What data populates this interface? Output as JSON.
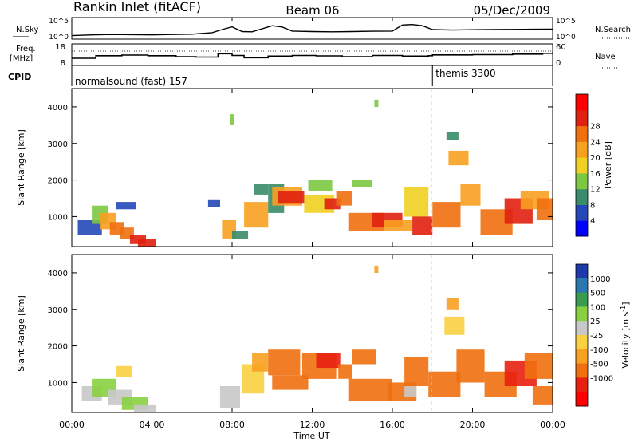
{
  "header": {
    "site": "Rankin Inlet (fitACF)",
    "beam": "Beam 06",
    "date": "05/Dec/2009"
  },
  "strips": {
    "nsky": {
      "label": "N.Sky",
      "tick_top": "10^5",
      "tick_bottom": "10^0",
      "right_label": "N.Search",
      "right_tick_top": "10^5",
      "right_tick_bottom": "10^0"
    },
    "freq": {
      "label_line1": "Freq.",
      "label_line2": "[MHz]",
      "tick_top": "18",
      "tick_bottom": "8",
      "right_label": "Nave",
      "right_tick_top": "60",
      "right_tick_bottom": "0"
    },
    "cpid": {
      "label": "CPID",
      "programs": [
        {
          "name": "normalsound (fast) 157",
          "start_hour": 0
        },
        {
          "name": "themis 3300",
          "start_hour": 18.0
        }
      ]
    }
  },
  "axes": {
    "xlabel": "Time UT",
    "xticks": [
      "00:00",
      "04:00",
      "08:00",
      "12:00",
      "16:00",
      "20:00",
      "00:00"
    ],
    "ylabel": "Slant Range [km]",
    "yticks": [
      "1000",
      "2000",
      "3000",
      "4000"
    ]
  },
  "colorbars": {
    "power": {
      "label": "Power [dB]",
      "ticks": [
        "4",
        "8",
        "12",
        "16",
        "20",
        "24",
        "28"
      ],
      "colors": [
        "#0000ff",
        "#2448b8",
        "#3a8c6a",
        "#7cc842",
        "#f0d020",
        "#f8a020",
        "#f07010",
        "#e02010",
        "#ff0000"
      ]
    },
    "velocity": {
      "label": "Velocity [m s^-1]",
      "ticks": [
        "1000",
        "500",
        "100",
        "25",
        "-25",
        "-100",
        "-500",
        "-1000"
      ],
      "colors": [
        "#1c3aa8",
        "#2a78b0",
        "#3a9a50",
        "#88d040",
        "#c8c8c8",
        "#f8d040",
        "#f8a020",
        "#f07010",
        "#e82010",
        "#ff0000"
      ]
    }
  },
  "chart_data": [
    {
      "type": "line",
      "title": "N.Sky / N.Search",
      "x_unit": "hours UT",
      "y_scale": "log",
      "ylim": [
        1,
        100000
      ],
      "x": [
        0,
        1,
        2,
        3,
        4,
        5,
        6,
        7,
        7.5,
        8,
        8.5,
        9,
        10,
        10.5,
        11,
        12,
        13,
        14,
        15,
        16,
        16.5,
        17,
        17.5,
        18,
        19,
        20,
        21,
        22,
        23,
        24
      ],
      "series": [
        {
          "values": [
            5,
            8,
            10,
            9,
            8,
            10,
            12,
            30,
            200,
            1000,
            60,
            50,
            2000,
            900,
            80,
            60,
            50,
            60,
            70,
            80,
            3000,
            4000,
            2000,
            200,
            150,
            180,
            200,
            220,
            240,
            250
          ]
        }
      ]
    },
    {
      "type": "line",
      "title": "Freq. / Nave",
      "x_unit": "hours UT",
      "ylim": [
        8,
        18
      ],
      "x": [
        0,
        1.2,
        2.5,
        3.8,
        5.2,
        6.2,
        7.3,
        8,
        8.6,
        9.8,
        11,
        12.2,
        13.5,
        15,
        16.5,
        17.8,
        18,
        20,
        22,
        23.5,
        24
      ],
      "series": [
        {
          "values": [
            11.2,
            12.5,
            12.8,
            12.5,
            12.0,
            11.8,
            13.5,
            12.6,
            11.5,
            12.3,
            12.6,
            12.4,
            12.0,
            12.6,
            12.3,
            12.5,
            12.9,
            13.0,
            13.3,
            13.7,
            14.2
          ]
        }
      ]
    },
    {
      "type": "heatmap",
      "title": "Power [dB]",
      "x_unit": "hours UT",
      "xlim": [
        0,
        24
      ],
      "ylim": [
        180,
        4500
      ],
      "cells": [
        [
          0.3,
          1.5,
          500,
          900,
          4
        ],
        [
          1.0,
          1.8,
          800,
          1300,
          12
        ],
        [
          1.4,
          2.2,
          650,
          1100,
          20
        ],
        [
          1.9,
          2.6,
          500,
          850,
          24
        ],
        [
          2.4,
          3.1,
          400,
          700,
          26
        ],
        [
          2.9,
          3.7,
          250,
          500,
          28
        ],
        [
          3.3,
          4.2,
          180,
          380,
          28
        ],
        [
          2.2,
          3.2,
          1200,
          1400,
          6
        ],
        [
          6.8,
          7.4,
          1250,
          1450,
          4
        ],
        [
          7.5,
          8.2,
          400,
          900,
          20
        ],
        [
          8.0,
          8.8,
          400,
          600,
          10
        ],
        [
          8.6,
          9.8,
          700,
          1400,
          22
        ],
        [
          9.1,
          9.8,
          1600,
          1900,
          8
        ],
        [
          9.8,
          10.6,
          1100,
          1900,
          8
        ],
        [
          10.0,
          11.5,
          1300,
          1800,
          20
        ],
        [
          10.3,
          11.6,
          1350,
          1700,
          28
        ],
        [
          11.8,
          13.0,
          1700,
          2000,
          14
        ],
        [
          11.6,
          13.1,
          1100,
          1600,
          18
        ],
        [
          12.6,
          13.4,
          1200,
          1500,
          28
        ],
        [
          13.2,
          14.0,
          1300,
          1700,
          24
        ],
        [
          14.0,
          15.0,
          1800,
          2000,
          14
        ],
        [
          13.8,
          15.6,
          600,
          1100,
          26
        ],
        [
          15.0,
          16.5,
          700,
          1100,
          28
        ],
        [
          15.6,
          17.0,
          600,
          900,
          22
        ],
        [
          16.6,
          17.8,
          1000,
          1800,
          18
        ],
        [
          17.0,
          18.0,
          500,
          1000,
          28
        ],
        [
          18.0,
          19.4,
          700,
          1400,
          24
        ],
        [
          18.8,
          19.8,
          2400,
          2800,
          22
        ],
        [
          19.4,
          20.4,
          1300,
          1900,
          20
        ],
        [
          20.4,
          22.0,
          500,
          1200,
          24
        ],
        [
          21.6,
          23.0,
          800,
          1500,
          28
        ],
        [
          22.4,
          23.8,
          1200,
          1700,
          22
        ],
        [
          23.2,
          24.0,
          900,
          1500,
          26
        ],
        [
          18.7,
          19.3,
          3100,
          3300,
          8
        ],
        [
          7.9,
          8.1,
          3500,
          3800,
          12
        ],
        [
          15.1,
          15.3,
          4000,
          4200,
          12
        ]
      ]
    },
    {
      "type": "heatmap",
      "title": "Velocity [m s^-1]",
      "x_unit": "hours UT",
      "xlim": [
        0,
        24
      ],
      "ylim": [
        180,
        4500
      ],
      "cells": [
        [
          0.5,
          1.5,
          500,
          900,
          80
        ],
        [
          1.0,
          2.2,
          600,
          1100,
          120
        ],
        [
          1.8,
          3.0,
          400,
          800,
          60
        ],
        [
          2.5,
          3.8,
          250,
          600,
          100
        ],
        [
          3.1,
          4.2,
          180,
          400,
          30
        ],
        [
          2.2,
          3.0,
          1150,
          1450,
          10
        ],
        [
          7.4,
          8.4,
          300,
          900,
          40
        ],
        [
          8.5,
          9.6,
          700,
          1500,
          20
        ],
        [
          9.0,
          9.8,
          1300,
          1800,
          -100
        ],
        [
          9.8,
          11.4,
          1200,
          1900,
          -150
        ],
        [
          10.0,
          11.8,
          800,
          1200,
          -300
        ],
        [
          11.5,
          13.2,
          1100,
          1800,
          -200
        ],
        [
          12.2,
          13.4,
          1400,
          1800,
          -600
        ],
        [
          13.3,
          14.0,
          1100,
          1500,
          -120
        ],
        [
          13.8,
          16.0,
          500,
          1100,
          -300
        ],
        [
          14.0,
          15.2,
          1500,
          1900,
          -180
        ],
        [
          15.8,
          17.2,
          500,
          1000,
          -400
        ],
        [
          16.6,
          17.8,
          900,
          1700,
          -120
        ],
        [
          17.8,
          19.4,
          600,
          1300,
          -300
        ],
        [
          18.6,
          19.6,
          2300,
          2800,
          0
        ],
        [
          19.2,
          20.6,
          1000,
          1900,
          -500
        ],
        [
          20.6,
          22.2,
          600,
          1300,
          -350
        ],
        [
          21.6,
          23.2,
          900,
          1600,
          -600
        ],
        [
          22.6,
          24.0,
          1100,
          1800,
          -450
        ],
        [
          23.0,
          24.0,
          400,
          900,
          -200
        ],
        [
          16.6,
          17.2,
          600,
          900,
          30
        ],
        [
          18.7,
          19.3,
          3000,
          3300,
          -100
        ],
        [
          15.1,
          15.3,
          4000,
          4200,
          -100
        ]
      ]
    }
  ]
}
